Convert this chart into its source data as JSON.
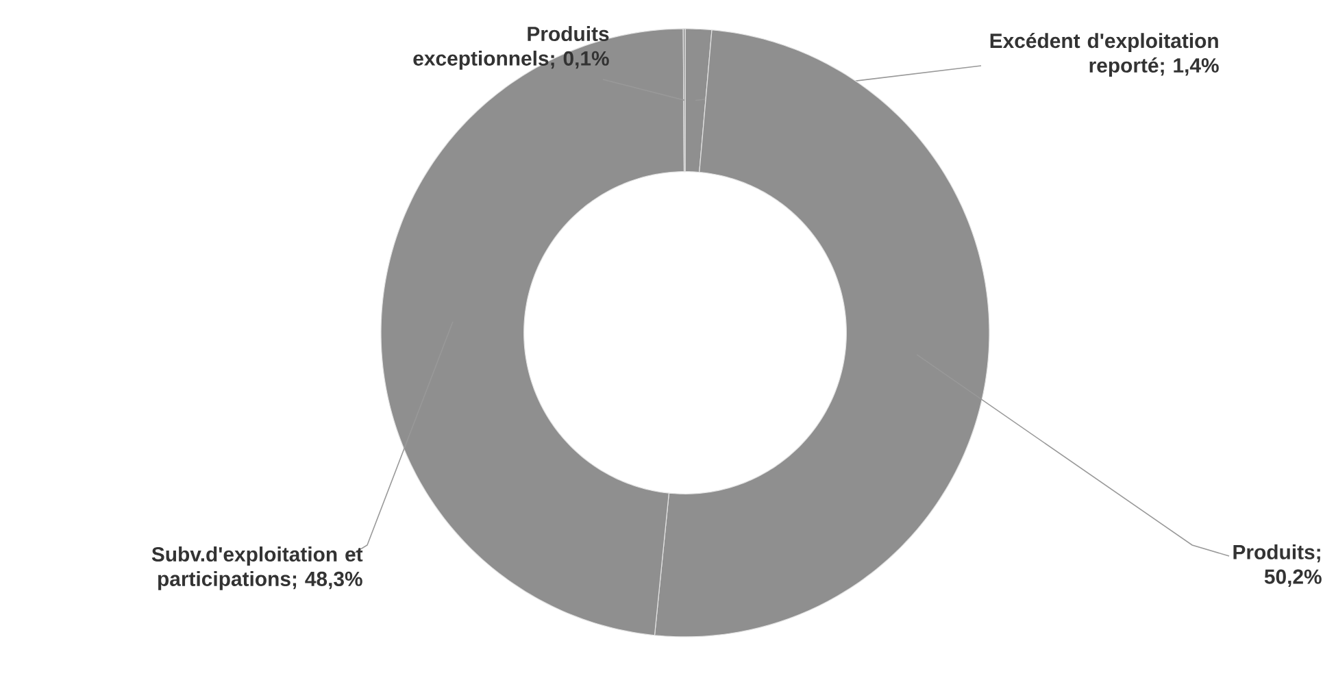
{
  "chart_data": {
    "type": "donut",
    "categories": [
      "Excédent d'exploitation reporté",
      "Produits",
      "Subv.d'exploitation et participations",
      "Produits exceptionnels"
    ],
    "values": [
      1.4,
      50.2,
      48.3,
      0.1
    ],
    "colors": [
      "#8f8f8f",
      "#8f8f8f",
      "#8f8f8f",
      "#8f8f8f"
    ],
    "value_labels": [
      "; 1,4%",
      "; 50,2%",
      "; 48,3%",
      "; 0,1%"
    ]
  }
}
